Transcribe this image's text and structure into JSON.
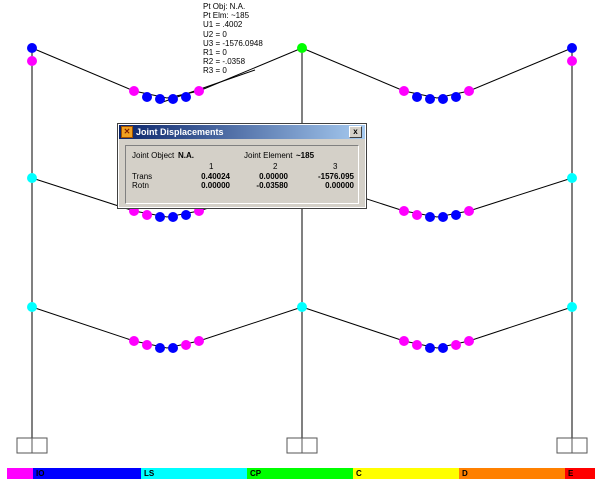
{
  "tooltip": {
    "lines": [
      "Pt Obj: N.A.",
      "Pt Elm: ~185",
      "U1 = .4002",
      "U2 = 0",
      "U3 = -1576.0948",
      "R1 = 0",
      "R2 = -.0358",
      "R3 = 0"
    ]
  },
  "dialog": {
    "title": "Joint Displacements",
    "close_label": "x",
    "joint_object_label": "Joint Object",
    "joint_object_value": "N.A.",
    "joint_element_label": "Joint Element",
    "joint_element_value": "~185",
    "columns": [
      "1",
      "2",
      "3"
    ],
    "rows": [
      {
        "label": "Trans",
        "values": [
          "0.40024",
          "0.00000",
          "-1576.095"
        ]
      },
      {
        "label": "Rotn",
        "values": [
          "0.00000",
          "-0.03580",
          "0.00000"
        ]
      }
    ]
  },
  "legend": [
    {
      "label": "",
      "color": "#ff00ff"
    },
    {
      "label": "IO",
      "color": "#0000ff"
    },
    {
      "label": "LS",
      "color": "#00ffff"
    },
    {
      "label": "CP",
      "color": "#00ff00"
    },
    {
      "label": "C",
      "color": "#ffff00"
    },
    {
      "label": "D",
      "color": "#ff8000"
    },
    {
      "label": "E",
      "color": "#ff0000"
    }
  ],
  "colors": {
    "hinge_b": "#ff00ff",
    "hinge_io": "#0000ff",
    "hinge_ls": "#00ffff",
    "hinge_cp": "#00ff00"
  }
}
